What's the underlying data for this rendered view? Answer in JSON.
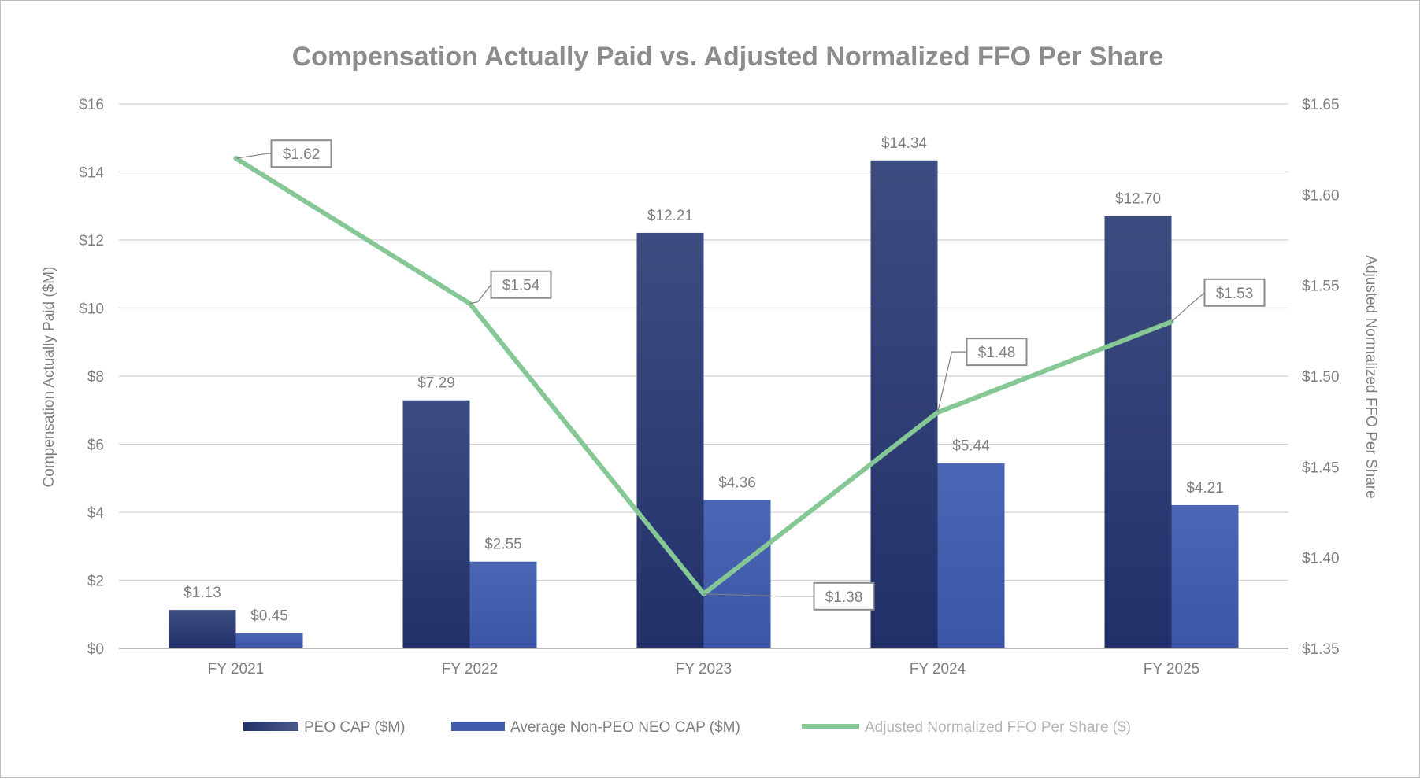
{
  "chart_data": {
    "type": "bar+line",
    "title": "Compensation Actually Paid vs. Adjusted Normalized FFO Per Share",
    "categories": [
      "FY 2021",
      "FY 2022",
      "FY 2023",
      "FY 2024",
      "FY 2025"
    ],
    "series": [
      {
        "name": "PEO CAP ($M)",
        "type": "bar",
        "axis": "left",
        "values": [
          1.13,
          7.29,
          12.21,
          14.34,
          12.7
        ],
        "labels": [
          "$1.13",
          "$7.29",
          "$12.21",
          "$14.34",
          "$12.70"
        ]
      },
      {
        "name": "Average Non-PEO NEO CAP ($M)",
        "type": "bar",
        "axis": "left",
        "values": [
          0.45,
          2.55,
          4.36,
          5.44,
          4.21
        ],
        "labels": [
          "$0.45",
          "$2.55",
          "$4.36",
          "$5.44",
          "$4.21"
        ]
      },
      {
        "name": "Adjusted Normalized FFO Per Share ($)",
        "type": "line",
        "axis": "right",
        "values": [
          1.62,
          1.54,
          1.38,
          1.48,
          1.53
        ],
        "labels": [
          "$1.62",
          "$1.54",
          "$1.38",
          "$1.48",
          "$1.53"
        ]
      }
    ],
    "ylabel": "Compensation Actually Paid ($M)",
    "y2label": "Adjusted Normalized FFO Per Share",
    "ylim": [
      0,
      16
    ],
    "y2lim": [
      1.35,
      1.65
    ],
    "yticks": [
      0,
      2,
      4,
      6,
      8,
      10,
      12,
      14,
      16
    ],
    "yticklabels": [
      "$0",
      "$2",
      "$4",
      "$6",
      "$8",
      "$10",
      "$12",
      "$14",
      "$16"
    ],
    "y2ticks": [
      1.35,
      1.4,
      1.45,
      1.5,
      1.55,
      1.6,
      1.65
    ],
    "y2ticklabels": [
      "$1.35",
      "$1.40",
      "$1.45",
      "$1.50",
      "$1.55",
      "$1.60",
      "$1.65"
    ],
    "grid": true,
    "legend": "bottom",
    "colors": {
      "peo_top": "#3d4d80",
      "peo_bottom": "#22306a",
      "neo_top": "#4a66b4",
      "neo_bottom": "#3b56a6",
      "line": "#86c796",
      "text": "#7f7f7f",
      "title": "#8c8c8c",
      "grid": "#d0d0d0",
      "legend_line_text": "#b5b5b5"
    }
  }
}
